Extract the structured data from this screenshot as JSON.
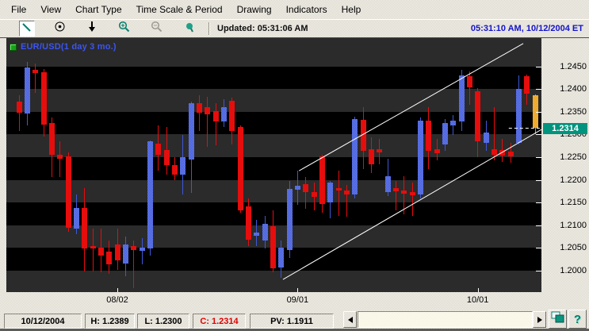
{
  "menu": {
    "items": [
      "File",
      "View",
      "Chart Type",
      "Time Scale & Period",
      "Drawing",
      "Indicators",
      "Help"
    ]
  },
  "toolbar": {
    "icons": [
      {
        "name": "trendline-tool-icon",
        "pressed": true,
        "disabled": false
      },
      {
        "name": "crosshair-tool-icon",
        "pressed": false,
        "disabled": false
      },
      {
        "name": "down-arrow-tool-icon",
        "pressed": false,
        "disabled": false
      },
      {
        "name": "zoom-in-icon",
        "pressed": false,
        "disabled": false
      },
      {
        "name": "zoom-out-icon",
        "pressed": false,
        "disabled": true
      },
      {
        "name": "marker-tool-icon",
        "pressed": false,
        "disabled": false
      }
    ],
    "updated_label": "Updated: 05:31:06 AM",
    "clock_label": "05:31:10 AM, 10/12/2004 ET"
  },
  "chart_data": {
    "type": "candlestick",
    "title": "EUR/USD(1 day  3 mo.)",
    "legend_icon": "green-chart-icon",
    "y_axis": {
      "ticks": [
        1.245,
        1.24,
        1.235,
        1.23,
        1.225,
        1.22,
        1.215,
        1.21,
        1.205,
        1.2
      ],
      "top_price": 1.2513,
      "bottom_price": 1.1952,
      "band_step": 0.005
    },
    "x_axis": {
      "ticks": [
        {
          "label": "08/02",
          "index": 12
        },
        {
          "label": "09/01",
          "index": 34
        },
        {
          "label": "10/01",
          "index": 56
        }
      ]
    },
    "candles": [
      {
        "d": "07/15",
        "o": 1.2373,
        "h": 1.2387,
        "l": 1.2308,
        "c": 1.2348,
        "t": "dn"
      },
      {
        "d": "07/16",
        "o": 1.2346,
        "h": 1.2461,
        "l": 1.232,
        "c": 1.2448,
        "t": "up"
      },
      {
        "d": "07/19",
        "o": 1.2443,
        "h": 1.2457,
        "l": 1.2392,
        "c": 1.2436,
        "t": "dn"
      },
      {
        "d": "07/20",
        "o": 1.2438,
        "h": 1.2445,
        "l": 1.2296,
        "c": 1.2322,
        "t": "dn"
      },
      {
        "d": "07/21",
        "o": 1.2325,
        "h": 1.2338,
        "l": 1.2206,
        "c": 1.2255,
        "t": "dn"
      },
      {
        "d": "07/22",
        "o": 1.2255,
        "h": 1.2285,
        "l": 1.2206,
        "c": 1.2247,
        "t": "dn"
      },
      {
        "d": "07/23",
        "o": 1.2252,
        "h": 1.2261,
        "l": 1.2085,
        "c": 1.2094,
        "t": "dn"
      },
      {
        "d": "07/26",
        "o": 1.2092,
        "h": 1.2168,
        "l": 1.208,
        "c": 1.2138,
        "t": "up"
      },
      {
        "d": "07/27",
        "o": 1.2138,
        "h": 1.2182,
        "l": 1.1997,
        "c": 1.2048,
        "t": "dn"
      },
      {
        "d": "07/28",
        "o": 1.2053,
        "h": 1.2092,
        "l": 1.1997,
        "c": 1.2048,
        "t": "dn"
      },
      {
        "d": "07/29",
        "o": 1.205,
        "h": 1.2092,
        "l": 1.1996,
        "c": 1.2032,
        "t": "dn"
      },
      {
        "d": "07/30",
        "o": 1.2041,
        "h": 1.2066,
        "l": 1.1992,
        "c": 1.2013,
        "t": "dn"
      },
      {
        "d": "08/02",
        "o": 1.2057,
        "h": 1.2092,
        "l": 1.2001,
        "c": 1.2022,
        "t": "dn"
      },
      {
        "d": "08/03",
        "o": 1.2015,
        "h": 1.2075,
        "l": 1.1987,
        "c": 1.2057,
        "t": "up"
      },
      {
        "d": "08/04",
        "o": 1.2053,
        "h": 1.2066,
        "l": 1.1961,
        "c": 1.2045,
        "t": "dn"
      },
      {
        "d": "08/05",
        "o": 1.2043,
        "h": 1.2071,
        "l": 1.2013,
        "c": 1.205,
        "t": "up"
      },
      {
        "d": "08/06",
        "o": 1.2048,
        "h": 1.2287,
        "l": 1.2032,
        "c": 1.2285,
        "t": "up"
      },
      {
        "d": "08/09",
        "o": 1.228,
        "h": 1.232,
        "l": 1.222,
        "c": 1.2255,
        "t": "dn"
      },
      {
        "d": "08/10",
        "o": 1.2266,
        "h": 1.2317,
        "l": 1.2211,
        "c": 1.2232,
        "t": "dn"
      },
      {
        "d": "08/11",
        "o": 1.2232,
        "h": 1.225,
        "l": 1.2199,
        "c": 1.2211,
        "t": "dn"
      },
      {
        "d": "08/12",
        "o": 1.2211,
        "h": 1.2299,
        "l": 1.2168,
        "c": 1.225,
        "t": "up"
      },
      {
        "d": "08/13",
        "o": 1.2245,
        "h": 1.2373,
        "l": 1.2171,
        "c": 1.2369,
        "t": "up"
      },
      {
        "d": "08/16",
        "o": 1.2369,
        "h": 1.2387,
        "l": 1.2308,
        "c": 1.2348,
        "t": "dn"
      },
      {
        "d": "08/17",
        "o": 1.2361,
        "h": 1.2383,
        "l": 1.2273,
        "c": 1.2345,
        "t": "dn"
      },
      {
        "d": "08/18",
        "o": 1.2352,
        "h": 1.2369,
        "l": 1.2276,
        "c": 1.2329,
        "t": "dn"
      },
      {
        "d": "08/19",
        "o": 1.2329,
        "h": 1.2378,
        "l": 1.2317,
        "c": 1.2361,
        "t": "up"
      },
      {
        "d": "08/20",
        "o": 1.2375,
        "h": 1.2382,
        "l": 1.2278,
        "c": 1.2308,
        "t": "dn"
      },
      {
        "d": "08/23",
        "o": 1.2317,
        "h": 1.232,
        "l": 1.2127,
        "c": 1.2132,
        "t": "dn"
      },
      {
        "d": "08/24",
        "o": 1.2141,
        "h": 1.2159,
        "l": 1.2053,
        "c": 1.2068,
        "t": "dn"
      },
      {
        "d": "08/25",
        "o": 1.2076,
        "h": 1.2111,
        "l": 1.2053,
        "c": 1.2083,
        "t": "up"
      },
      {
        "d": "08/26",
        "o": 1.2066,
        "h": 1.212,
        "l": 1.2048,
        "c": 1.2103,
        "t": "up"
      },
      {
        "d": "08/27",
        "o": 1.2097,
        "h": 1.2132,
        "l": 1.1996,
        "c": 1.2004,
        "t": "dn"
      },
      {
        "d": "08/30",
        "o": 1.2006,
        "h": 1.2066,
        "l": 1.1983,
        "c": 1.205,
        "t": "up"
      },
      {
        "d": "08/31",
        "o": 1.2045,
        "h": 1.2197,
        "l": 1.2027,
        "c": 1.218,
        "t": "up"
      },
      {
        "d": "09/01",
        "o": 1.2178,
        "h": 1.222,
        "l": 1.2145,
        "c": 1.2187,
        "t": "up"
      },
      {
        "d": "09/02",
        "o": 1.219,
        "h": 1.2206,
        "l": 1.2136,
        "c": 1.2173,
        "t": "dn"
      },
      {
        "d": "09/03",
        "o": 1.2173,
        "h": 1.2194,
        "l": 1.2132,
        "c": 1.2162,
        "t": "dn"
      },
      {
        "d": "09/06",
        "o": 1.2252,
        "h": 1.2255,
        "l": 1.2127,
        "c": 1.2146,
        "t": "dn"
      },
      {
        "d": "09/07",
        "o": 1.215,
        "h": 1.2197,
        "l": 1.2115,
        "c": 1.2194,
        "t": "up"
      },
      {
        "d": "09/08",
        "o": 1.2182,
        "h": 1.222,
        "l": 1.212,
        "c": 1.2176,
        "t": "dn"
      },
      {
        "d": "09/09",
        "o": 1.2176,
        "h": 1.2189,
        "l": 1.2118,
        "c": 1.2168,
        "t": "dn"
      },
      {
        "d": "09/10",
        "o": 1.2168,
        "h": 1.2339,
        "l": 1.2159,
        "c": 1.2334,
        "t": "up"
      },
      {
        "d": "09/13",
        "o": 1.2332,
        "h": 1.2361,
        "l": 1.2224,
        "c": 1.2264,
        "t": "dn"
      },
      {
        "d": "09/14",
        "o": 1.2268,
        "h": 1.2294,
        "l": 1.2215,
        "c": 1.2234,
        "t": "dn"
      },
      {
        "d": "09/15",
        "o": 1.2268,
        "h": 1.229,
        "l": 1.2235,
        "c": 1.2261,
        "t": "dn"
      },
      {
        "d": "09/16",
        "o": 1.2173,
        "h": 1.2247,
        "l": 1.2164,
        "c": 1.2208,
        "t": "up"
      },
      {
        "d": "09/17",
        "o": 1.2182,
        "h": 1.2197,
        "l": 1.2132,
        "c": 1.2175,
        "t": "dn"
      },
      {
        "d": "09/20",
        "o": 1.2176,
        "h": 1.2208,
        "l": 1.2124,
        "c": 1.2169,
        "t": "dn"
      },
      {
        "d": "09/21",
        "o": 1.2173,
        "h": 1.2194,
        "l": 1.212,
        "c": 1.2166,
        "t": "dn"
      },
      {
        "d": "09/22",
        "o": 1.2168,
        "h": 1.2338,
        "l": 1.2159,
        "c": 1.2331,
        "t": "up"
      },
      {
        "d": "09/23",
        "o": 1.2331,
        "h": 1.2361,
        "l": 1.2224,
        "c": 1.2264,
        "t": "dn"
      },
      {
        "d": "09/24",
        "o": 1.2268,
        "h": 1.229,
        "l": 1.2243,
        "c": 1.2259,
        "t": "dn"
      },
      {
        "d": "09/27",
        "o": 1.2278,
        "h": 1.2334,
        "l": 1.2264,
        "c": 1.2325,
        "t": "up"
      },
      {
        "d": "09/28",
        "o": 1.232,
        "h": 1.2343,
        "l": 1.2299,
        "c": 1.2331,
        "t": "up"
      },
      {
        "d": "09/29",
        "o": 1.2329,
        "h": 1.2443,
        "l": 1.2308,
        "c": 1.2431,
        "t": "up"
      },
      {
        "d": "09/30",
        "o": 1.2429,
        "h": 1.2439,
        "l": 1.2366,
        "c": 1.2404,
        "t": "dn"
      },
      {
        "d": "10/01",
        "o": 1.2396,
        "h": 1.2403,
        "l": 1.225,
        "c": 1.2285,
        "t": "dn"
      },
      {
        "d": "10/04",
        "o": 1.2282,
        "h": 1.2331,
        "l": 1.2264,
        "c": 1.2304,
        "t": "up"
      },
      {
        "d": "10/05",
        "o": 1.2268,
        "h": 1.2361,
        "l": 1.2243,
        "c": 1.2255,
        "t": "dn"
      },
      {
        "d": "10/06",
        "o": 1.2266,
        "h": 1.229,
        "l": 1.224,
        "c": 1.2254,
        "t": "dn"
      },
      {
        "d": "10/07",
        "o": 1.2262,
        "h": 1.2282,
        "l": 1.2238,
        "c": 1.2252,
        "t": "dn"
      },
      {
        "d": "10/08",
        "o": 1.2282,
        "h": 1.2431,
        "l": 1.2278,
        "c": 1.2401,
        "t": "up"
      },
      {
        "d": "10/11",
        "o": 1.2428,
        "h": 1.2432,
        "l": 1.2366,
        "c": 1.239,
        "t": "dn"
      },
      {
        "d": "10/12",
        "o": 1.2387,
        "h": 1.2389,
        "l": 1.23,
        "c": 1.2314,
        "t": "cur"
      }
    ],
    "trendlines": [
      {
        "x1_frac": 0.517,
        "price1": 1.198,
        "x2_frac": 1.0,
        "price2": 1.2311
      },
      {
        "x1_frac": 0.547,
        "price1": 1.222,
        "x2_frac": 0.966,
        "price2": 1.2501
      }
    ],
    "last_price": {
      "value": 1.2314,
      "label": "1.2314",
      "line_from_frac": 0.939
    },
    "colors": {
      "up": "#3f57d6",
      "down": "#e60d0d",
      "current": "#e8990f",
      "band_black": "#000000",
      "band_gray": "#2b2b2b",
      "trendline": "#ffffff",
      "price_tag_bg": "#00937e",
      "legend_text": "#3c55f0",
      "close_text": "#e00000",
      "clock_text": "#1414cc"
    },
    "legend_position": "top-left",
    "grid": "banded"
  },
  "status_bar": {
    "items": [
      {
        "label": "10/12/2004",
        "color": "#000000",
        "name": "status-date"
      },
      {
        "label": "H: 1.2389",
        "color": "#000000",
        "name": "status-high"
      },
      {
        "label": "L: 1.2300",
        "color": "#000000",
        "name": "status-low"
      },
      {
        "label": "C: 1.2314",
        "color": "#e00000",
        "name": "status-close"
      },
      {
        "label": "PV: 1.1911",
        "color": "#000000",
        "name": "status-pivot"
      }
    ],
    "buttons": [
      {
        "name": "windows-icon",
        "glyph": "windows"
      },
      {
        "name": "help-icon",
        "glyph": "?"
      }
    ]
  }
}
